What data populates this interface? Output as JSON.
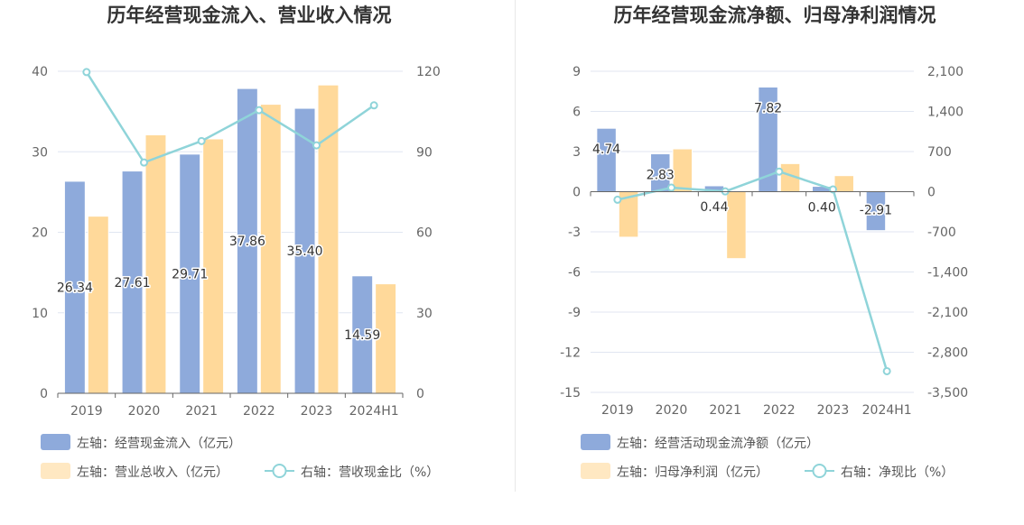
{
  "colors": {
    "bar1": "#8eaadb",
    "bar2": "#ffd99a",
    "line": "#8fd4d9",
    "grid": "#e0e6f1",
    "axis": "#666666"
  },
  "chart_data": [
    {
      "type": "bar",
      "title": "历年经营现金流入、营业收入情况",
      "categories": [
        "2019",
        "2020",
        "2021",
        "2022",
        "2023",
        "2024H1"
      ],
      "y_left": {
        "min": 0,
        "max": 40,
        "ticks": [
          "0",
          "10",
          "20",
          "30",
          "40"
        ]
      },
      "y_right": {
        "min": 0,
        "max": 120,
        "ticks": [
          "0",
          "30",
          "60",
          "90",
          "120"
        ]
      },
      "series": [
        {
          "name": "左轴：经营现金流入（亿元）",
          "kind": "bar",
          "axis": "left",
          "values": [
            26.34,
            27.61,
            29.71,
            37.86,
            35.4,
            14.59
          ],
          "labels": [
            "26.34",
            "27.61",
            "29.71",
            "37.86",
            "35.40",
            "14.59"
          ]
        },
        {
          "name": "左轴：营业总收入（亿元）",
          "kind": "bar",
          "axis": "left",
          "values": [
            22.0,
            32.1,
            31.6,
            35.9,
            38.3,
            13.6
          ]
        },
        {
          "name": "右轴：营收现金比（%）",
          "kind": "line",
          "axis": "right",
          "values": [
            119.7,
            86.0,
            94.0,
            105.5,
            92.4,
            107.3
          ]
        }
      ]
    },
    {
      "type": "bar",
      "title": "历年经营现金流净额、归母净利润情况",
      "categories": [
        "2019",
        "2020",
        "2021",
        "2022",
        "2023",
        "2024H1"
      ],
      "y_left": {
        "min": -15,
        "max": 9,
        "ticks": [
          "-15",
          "-12",
          "-9",
          "-6",
          "-3",
          "0",
          "3",
          "6",
          "9"
        ]
      },
      "y_right": {
        "min": -3500,
        "max": 2100,
        "ticks": [
          "-3,500",
          "-2,800",
          "-2,100",
          "-1,400",
          "-700",
          "0",
          "700",
          "1,400",
          "2,100"
        ]
      },
      "series": [
        {
          "name": "左轴：经营活动现金流净额（亿元）",
          "kind": "bar",
          "axis": "left",
          "values": [
            4.74,
            2.83,
            0.44,
            7.82,
            0.4,
            -2.91
          ],
          "labels": [
            "4.74",
            "2.83",
            "0.44",
            "7.82",
            "0.40",
            "-2.91"
          ]
        },
        {
          "name": "左轴：归母净利润（亿元）",
          "kind": "bar",
          "axis": "left",
          "values": [
            -3.4,
            3.2,
            -5.0,
            2.1,
            1.2,
            0.05
          ]
        },
        {
          "name": "右轴：净现比（%）",
          "kind": "line",
          "axis": "right",
          "values": [
            -140,
            70,
            5,
            350,
            40,
            -3130
          ]
        }
      ]
    }
  ]
}
